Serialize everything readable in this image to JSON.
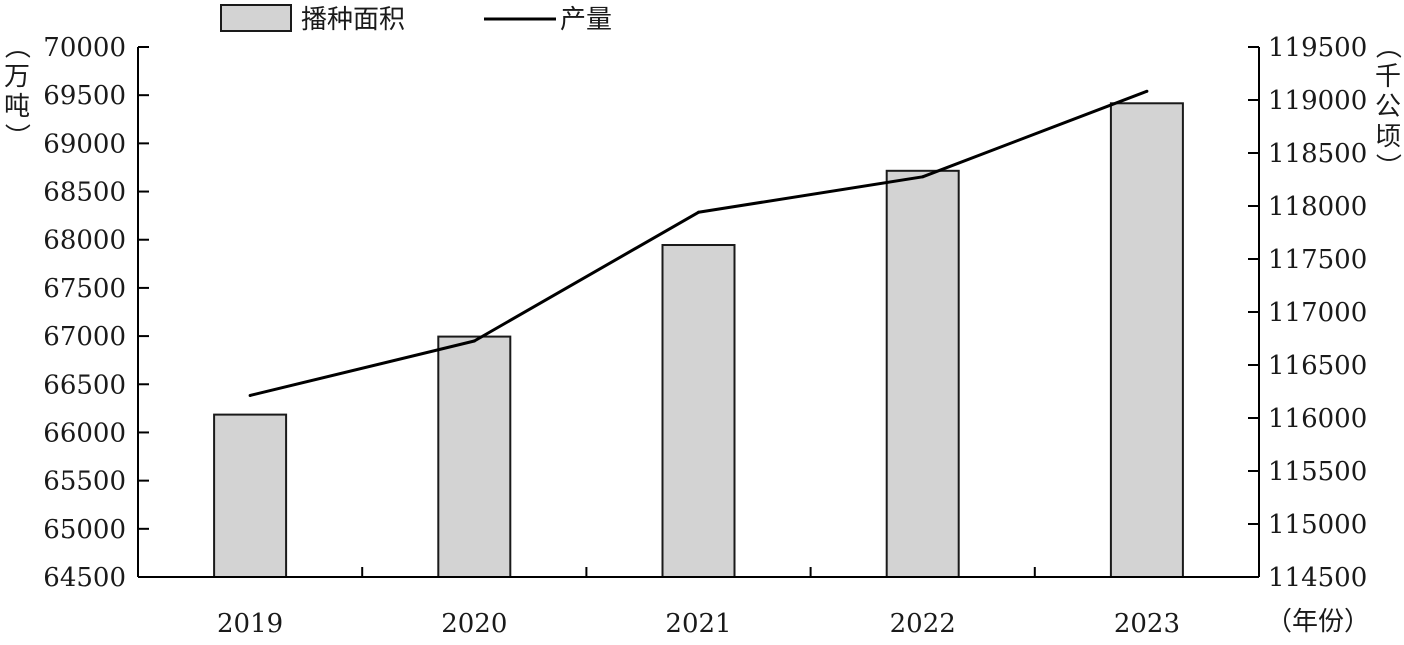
{
  "chart_data": {
    "type": "bar",
    "categories": [
      "2019",
      "2020",
      "2021",
      "2022",
      "2023"
    ],
    "series": [
      {
        "name": "播种面积",
        "type": "bar",
        "axis": "right",
        "color": "#d3d3d3",
        "values": [
          116032,
          116768,
          117632,
          118332,
          118969
        ]
      },
      {
        "name": "产量",
        "type": "line",
        "axis": "left",
        "color": "#000000",
        "values": [
          66384,
          66949,
          68285,
          68653,
          69541
        ]
      }
    ],
    "y_left": {
      "label": "（万吨）",
      "ylim": [
        64500,
        70000
      ],
      "ticks": [
        "64500",
        "65000",
        "65500",
        "66000",
        "66500",
        "67000",
        "67500",
        "68000",
        "68500",
        "69000",
        "69500",
        "70000"
      ]
    },
    "y_right": {
      "label": "（千公顷）",
      "ylim": [
        114500,
        119500
      ],
      "ticks": [
        "114500",
        "115000",
        "115500",
        "116000",
        "116500",
        "117000",
        "117500",
        "118000",
        "118500",
        "119000",
        "119500"
      ]
    },
    "xlabel": "（年份）",
    "legend_position": "top-center",
    "grid": false
  }
}
